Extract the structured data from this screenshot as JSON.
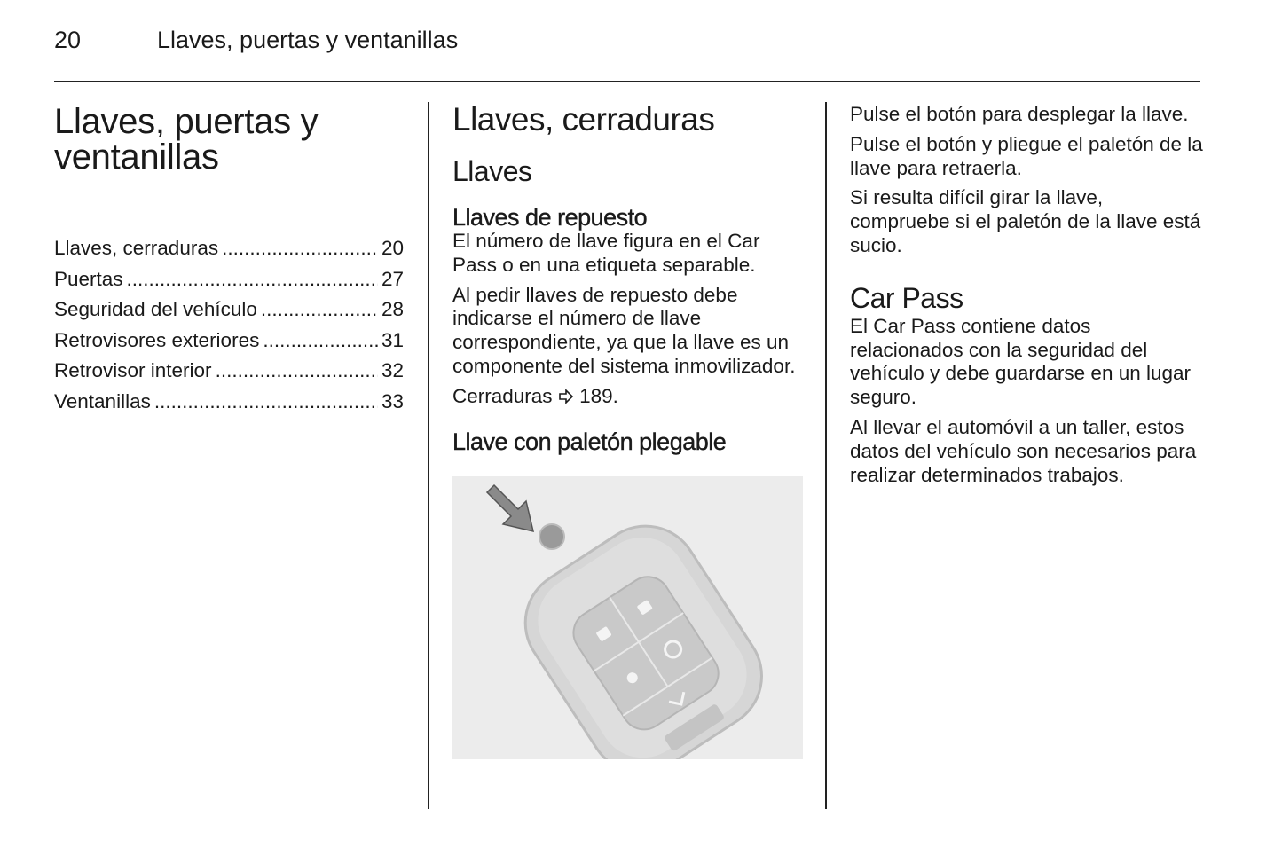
{
  "header": {
    "page_number": "20",
    "running_title": "Llaves, puertas y ventanillas"
  },
  "col1": {
    "title": "Llaves, puertas y ventanillas",
    "toc": [
      {
        "label": "Llaves, cerraduras",
        "page": "20"
      },
      {
        "label": "Puertas",
        "page": "27"
      },
      {
        "label": "Seguridad del vehículo",
        "page": "28"
      },
      {
        "label": "Retrovisores exteriores",
        "page": "31"
      },
      {
        "label": "Retrovisor interior",
        "page": "32"
      },
      {
        "label": "Ventanillas",
        "page": "33"
      }
    ]
  },
  "col2": {
    "section_title": "Llaves, cerraduras",
    "subsection_title": "Llaves",
    "spare_heading": "Llaves de repuesto",
    "spare_p1": "El número de llave figura en el Car Pass o en una etiqueta separable.",
    "spare_p2": "Al pedir llaves de repuesto debe indicarse el número de llave correspondiente, ya que la llave es un componente del sistema inmovilizador.",
    "xref_text": "Cerraduras",
    "xref_icon": "arrow-right-outline-icon",
    "xref_page": "189.",
    "fold_heading": "Llave con paletón plegable"
  },
  "col3": {
    "p1": "Pulse el botón para desplegar la llave.",
    "p2": "Pulse el botón y pliegue el paletón de la llave para retraerla.",
    "p3": "Si resulta difícil girar la llave, compruebe si el paletón de la llave está sucio.",
    "carpass_heading": "Car Pass",
    "carpass_p1": "El Car Pass contiene datos relacionados con la seguridad del vehículo y debe guardarse en un lugar seguro.",
    "carpass_p2": "Al llevar el automóvil a un taller, estos datos del vehículo son necesarios para realizar determinados trabajos."
  }
}
